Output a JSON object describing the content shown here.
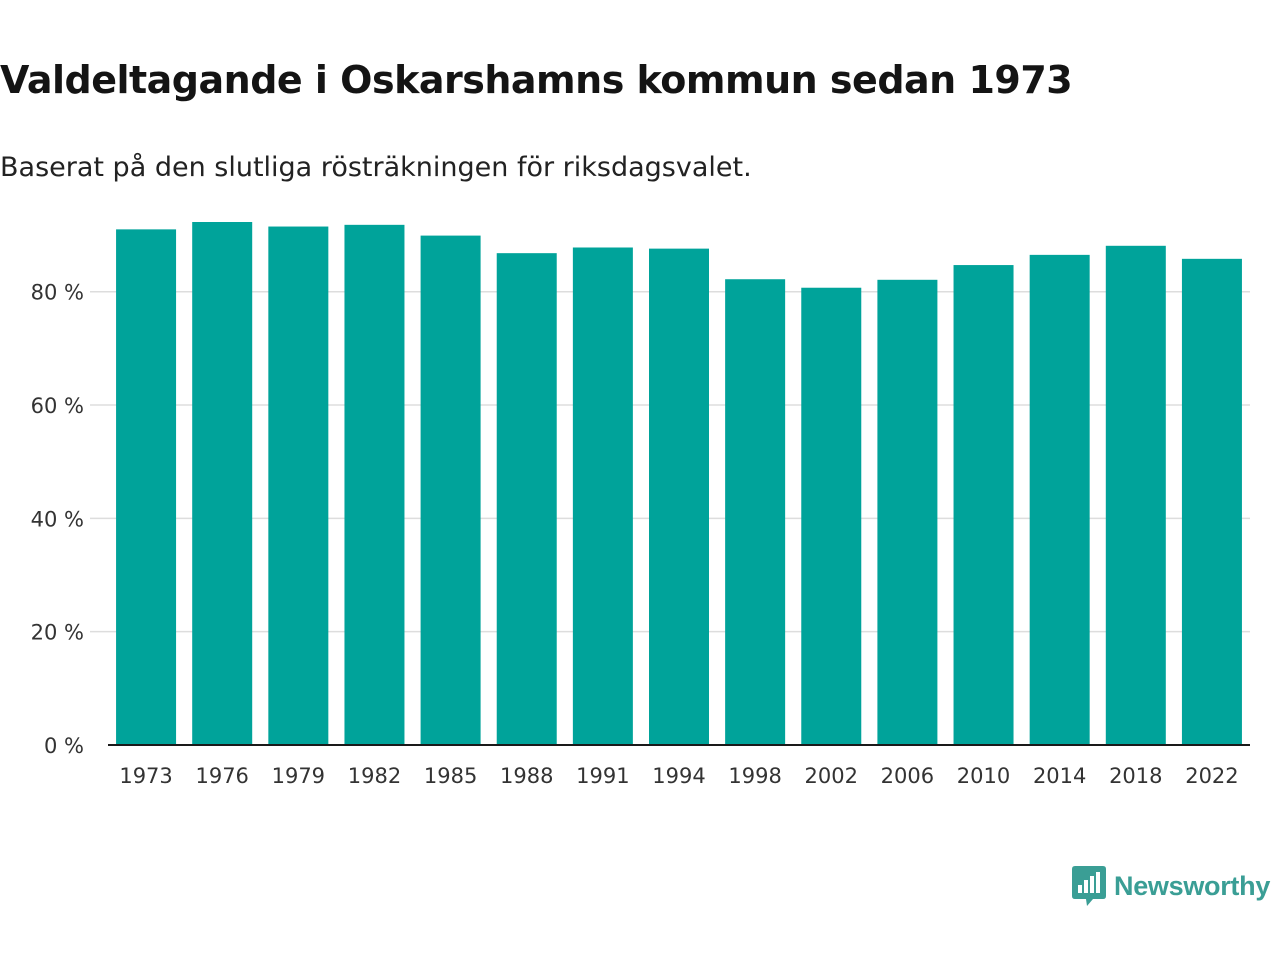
{
  "colors": {
    "bar": "#00a39a",
    "grid": "#dddddd",
    "axis": "#1a1a1a",
    "logo": "#3a9e95"
  },
  "brand": {
    "name": "Newsworthy",
    "icon": "bar-chart-speech-bubble-icon"
  },
  "chart_data": {
    "type": "bar",
    "title": "Valdeltagande i Oskarshamns kommun sedan 1973",
    "subtitle": "Baserat på den slutliga rösträkningen för riksdagsvalet.",
    "xlabel": "",
    "ylabel": "",
    "categories": [
      "1973",
      "1976",
      "1979",
      "1982",
      "1985",
      "1988",
      "1991",
      "1994",
      "1998",
      "2002",
      "2006",
      "2010",
      "2014",
      "2018",
      "2022"
    ],
    "values": [
      91.0,
      92.3,
      91.5,
      91.8,
      89.9,
      86.8,
      87.8,
      87.6,
      82.2,
      80.7,
      82.1,
      84.7,
      86.5,
      88.1,
      85.8
    ],
    "ylim": [
      0,
      92.3
    ],
    "yticks": [
      0,
      20,
      40,
      60,
      80
    ],
    "ytick_labels": [
      "0 %",
      "20 %",
      "40 %",
      "60 %",
      "80 %"
    ],
    "grid": true
  }
}
